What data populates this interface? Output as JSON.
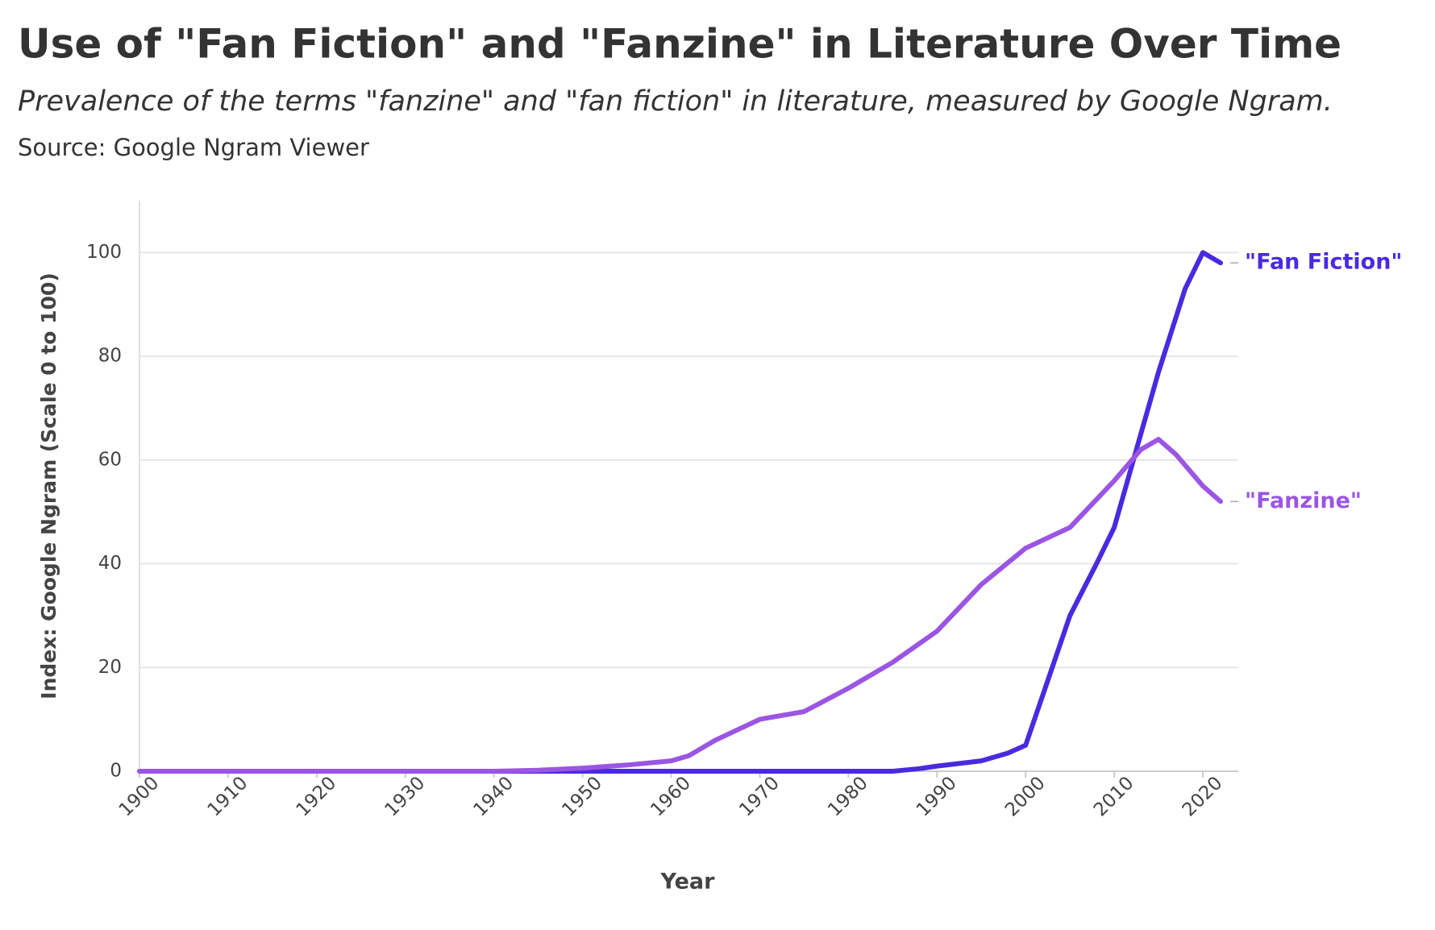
{
  "chart_data": {
    "type": "line",
    "title": "Use of \"Fan Fiction\" and \"Fanzine\" in Literature Over Time",
    "subtitle": "Prevalence of the terms \"fanzine\" and \"fan fiction\" in literature, measured by Google Ngram.",
    "source": "Source: Google Ngram Viewer",
    "x_label": "Year",
    "y_label": "Index: Google Ngram (Scale 0 to 100)",
    "xlim": [
      1900,
      2024
    ],
    "ylim": [
      0,
      110
    ],
    "xticks": [
      1900,
      1910,
      1920,
      1930,
      1940,
      1950,
      1960,
      1970,
      1980,
      1990,
      2000,
      2010,
      2020
    ],
    "yticks": [
      0,
      20,
      40,
      60,
      80,
      100
    ],
    "grid": true,
    "series": [
      {
        "name": "\"Fan Fiction\"",
        "color": "#4a2ae0",
        "x": [
          1900,
          1910,
          1920,
          1930,
          1940,
          1950,
          1960,
          1970,
          1980,
          1985,
          1988,
          1990,
          1995,
          1998,
          2000,
          2002,
          2005,
          2008,
          2010,
          2013,
          2015,
          2018,
          2020,
          2022
        ],
        "values": [
          0,
          0,
          0,
          0,
          0,
          0,
          0,
          0,
          0,
          0,
          0.5,
          1,
          2,
          3.5,
          5,
          15,
          30,
          40,
          47,
          65,
          77,
          93,
          100,
          98
        ]
      },
      {
        "name": "\"Fanzine\"",
        "color": "#9b55e3",
        "x": [
          1900,
          1910,
          1920,
          1930,
          1940,
          1945,
          1950,
          1955,
          1960,
          1962,
          1965,
          1970,
          1975,
          1980,
          1985,
          1990,
          1995,
          2000,
          2005,
          2010,
          2013,
          2015,
          2017,
          2020,
          2022
        ],
        "values": [
          0,
          0,
          0,
          0,
          0,
          0.2,
          0.6,
          1.2,
          2,
          3,
          6,
          10,
          11.5,
          16,
          21,
          27,
          36,
          43,
          47,
          56,
          62,
          64,
          61,
          55,
          52
        ]
      }
    ]
  }
}
